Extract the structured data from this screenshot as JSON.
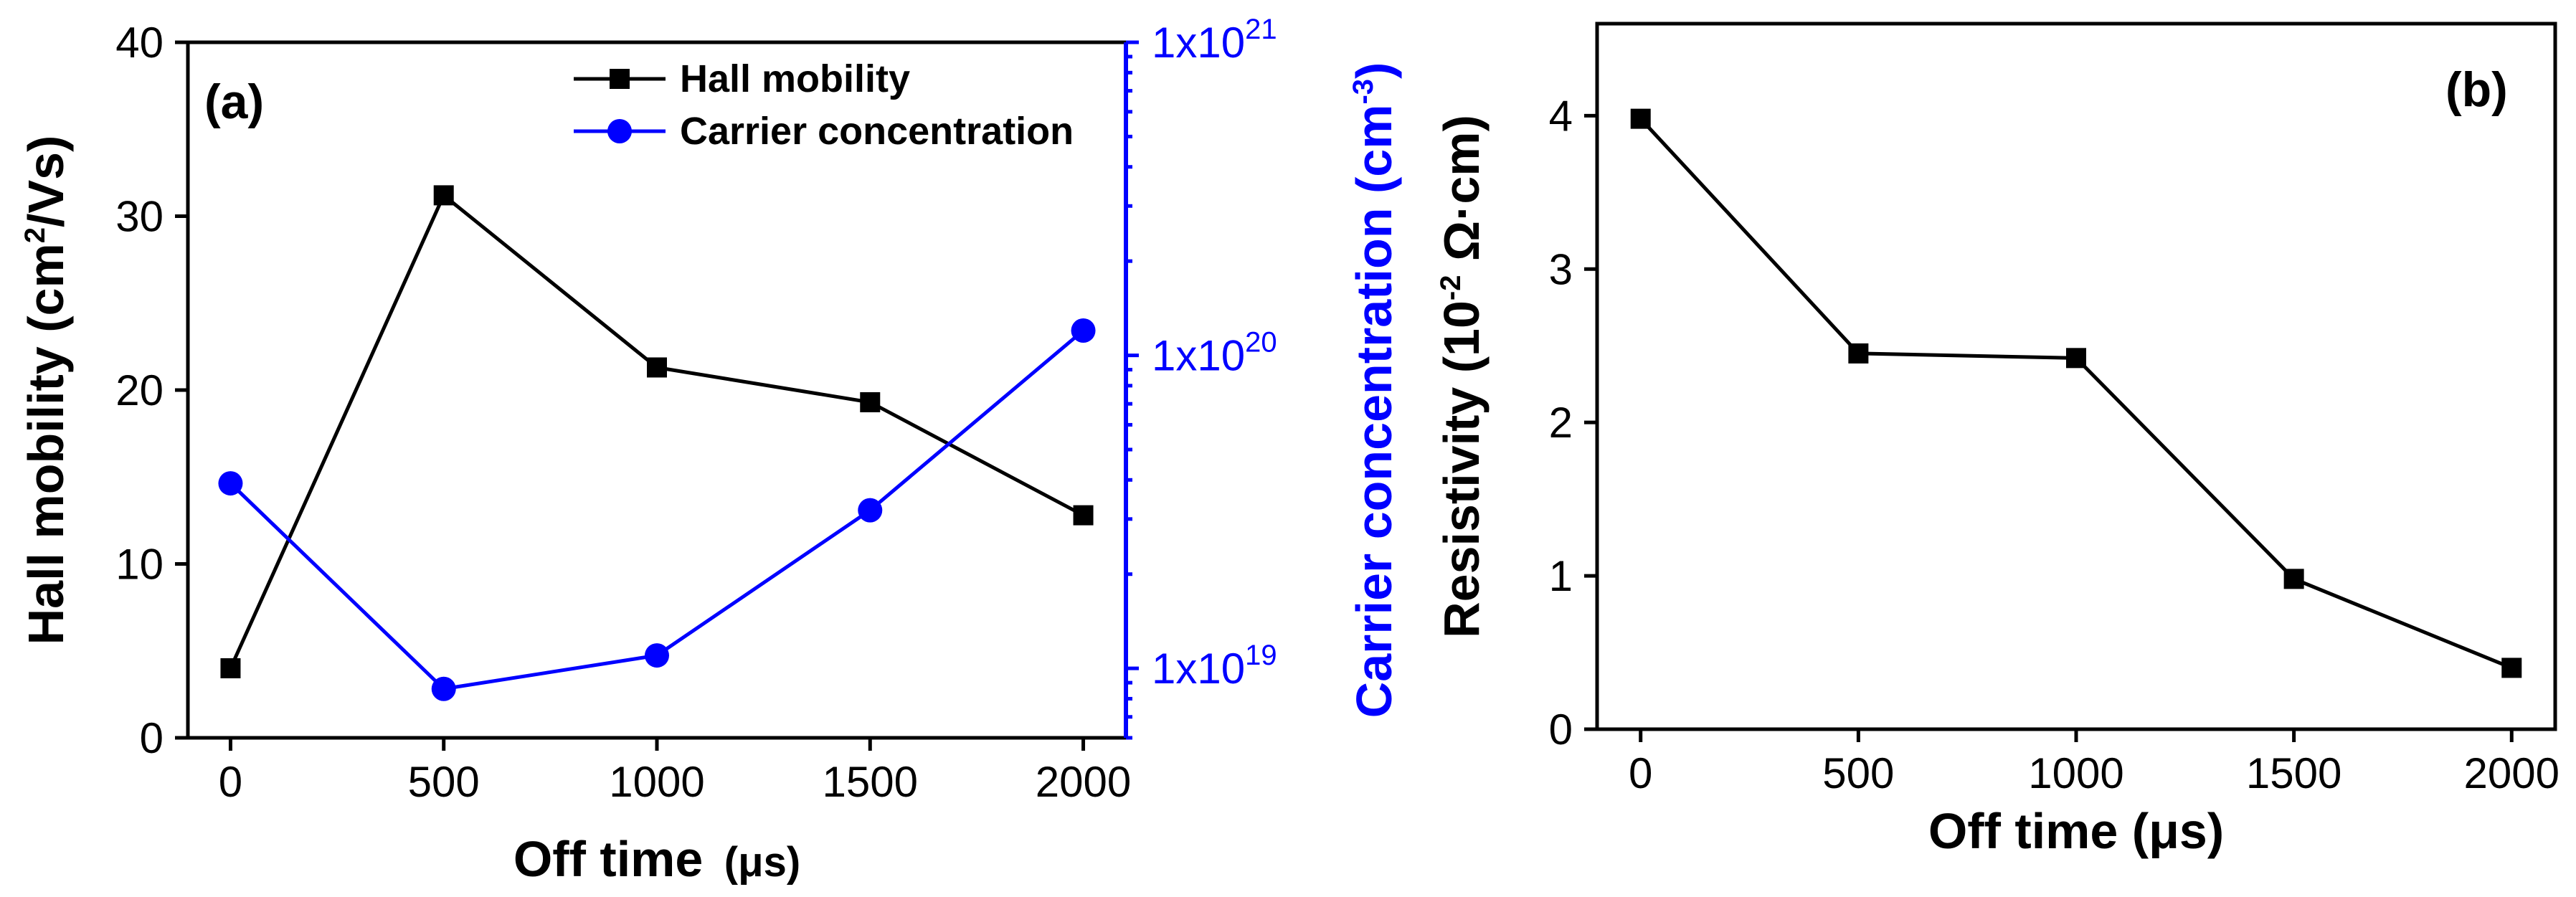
{
  "chart_data": [
    {
      "type": "line",
      "panel_label": "(a)",
      "x": [
        0,
        500,
        1000,
        1500,
        2000
      ],
      "xlim": [
        -100,
        2100
      ],
      "xticks": [
        "0",
        "500",
        "1000",
        "1500",
        "2000"
      ],
      "xlabel": "Off time",
      "xlabel_unit": "(μs)",
      "ylabel": {
        "main": "Hall mobility (cm",
        "sup": "2",
        "tail": "/Vs)"
      },
      "ylim": [
        0,
        40
      ],
      "yticks": [
        "0",
        "10",
        "20",
        "30",
        "40"
      ],
      "y2label": {
        "main": "Carrier concentration (cm",
        "sup": "-3",
        "tail": ")"
      },
      "y2scale": "log",
      "y2ticks": [
        {
          "value": 1e+19,
          "base": "1x10",
          "exp": "19"
        },
        {
          "value": 1e+20,
          "base": "1x10",
          "exp": "20"
        },
        {
          "value": 1e+21,
          "base": "1x10",
          "exp": "21"
        }
      ],
      "series": [
        {
          "name": "Hall mobility",
          "axis": "left",
          "marker": "square",
          "color": "#000000",
          "values": [
            4.0,
            31.2,
            21.3,
            19.3,
            12.8
          ]
        },
        {
          "name": "Carrier concentration",
          "axis": "right",
          "marker": "circle",
          "color": "#0000ff",
          "values": [
            3.9e+19,
            8.6e+18,
            1.1e+19,
            3.2e+19,
            1.2e+20
          ]
        }
      ],
      "legend_position": "top-right"
    },
    {
      "type": "line",
      "panel_label": "(b)",
      "x": [
        0,
        500,
        1000,
        1500,
        2000
      ],
      "xlim": [
        -100,
        2100
      ],
      "xticks": [
        "0",
        "500",
        "1000",
        "1500",
        "2000"
      ],
      "xlabel": "Off time (μs)",
      "ylabel": {
        "main": "Resistivity (10",
        "sup": "-2",
        "tail": " Ω·cm)"
      },
      "ylim": [
        0,
        4.6
      ],
      "yticks": [
        "0",
        "1",
        "2",
        "3",
        "4"
      ],
      "series": [
        {
          "name": "Resistivity",
          "marker": "square",
          "color": "#000000",
          "values": [
            3.98,
            2.45,
            2.42,
            0.98,
            0.4
          ]
        }
      ]
    }
  ]
}
